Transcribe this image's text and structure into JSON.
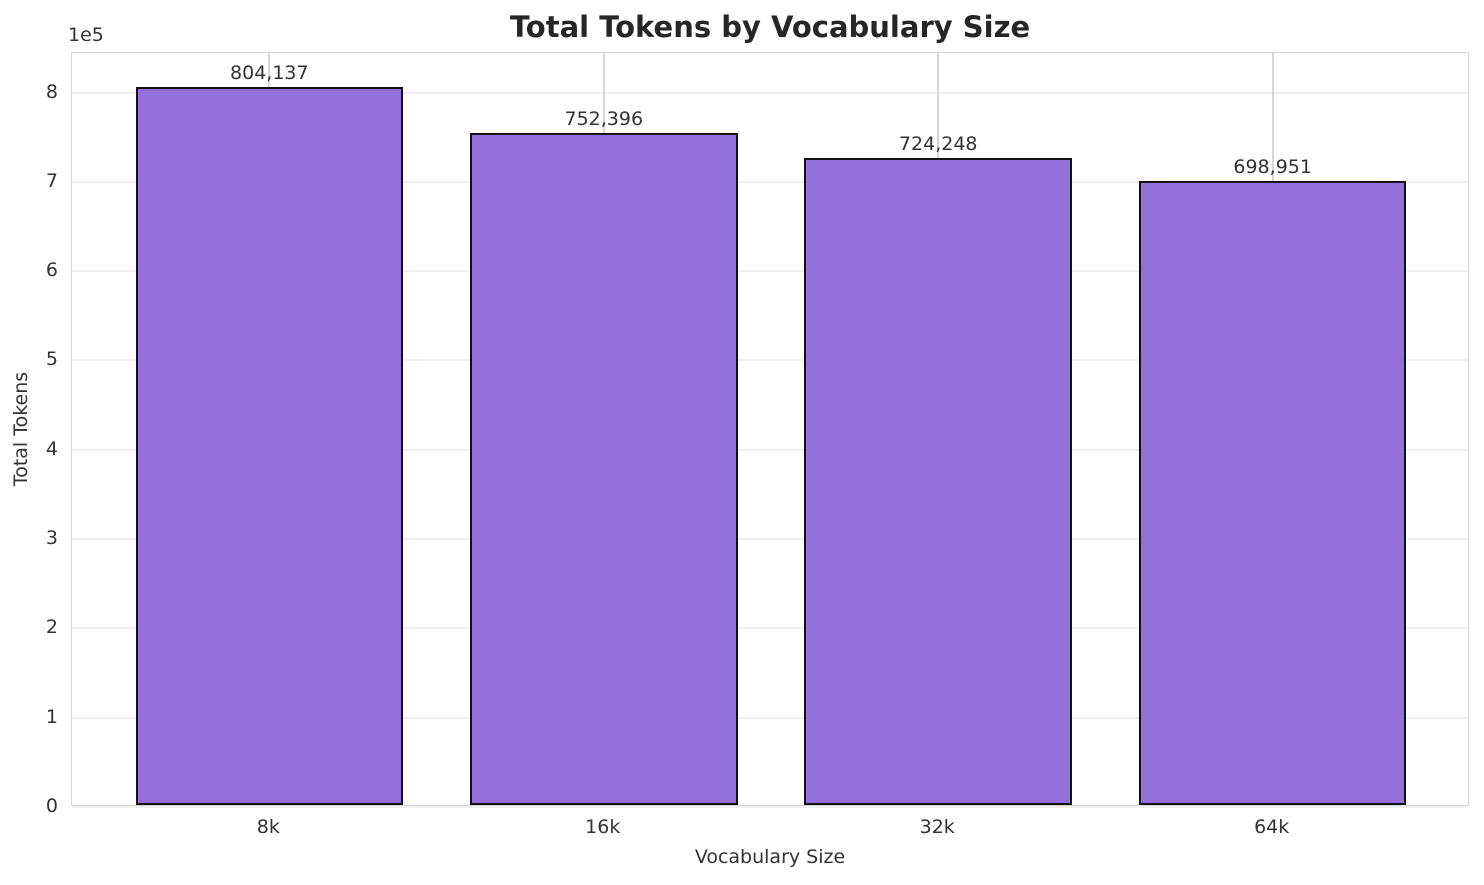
{
  "chart_data": {
    "type": "bar",
    "title": "Total Tokens by Vocabulary Size",
    "xlabel": "Vocabulary Size",
    "ylabel": "Total Tokens",
    "categories": [
      "8k",
      "16k",
      "32k",
      "64k"
    ],
    "values": [
      804137,
      752396,
      724248,
      698951
    ],
    "value_labels": [
      "804,137",
      "752,396",
      "724,248",
      "698,951"
    ],
    "yticks": [
      0,
      1,
      2,
      3,
      4,
      5,
      6,
      7,
      8
    ],
    "ytick_scale": 100000,
    "offset_text": "1e5",
    "ylim": [
      0,
      844344
    ],
    "xlim": [
      -0.59,
      3.59
    ],
    "bar_width_ratio": 0.8,
    "grid": true,
    "legend": "none",
    "colors": {
      "bar_fill": "#9370DB",
      "bar_edge": "#111111",
      "grid_horizontal": "#f0f0f0",
      "grid_vertical": "#d6d6d6",
      "spine": "#d5d5d5",
      "title_text": "#262626",
      "tick_text": "#333333",
      "background": "#ffffff"
    }
  }
}
